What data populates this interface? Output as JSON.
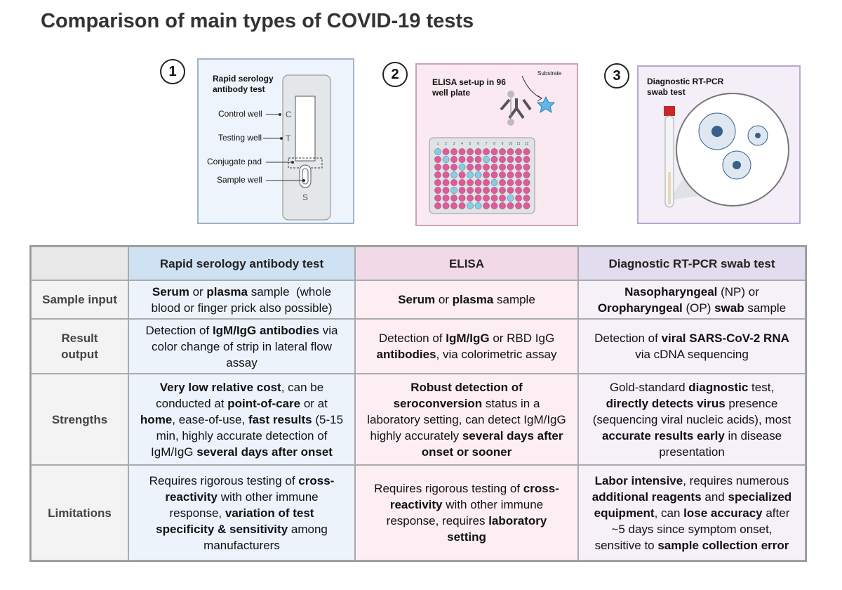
{
  "title": "Comparison of main types of COVID-19 tests",
  "panels": [
    {
      "number": "1",
      "label": "Rapid serology antibody test",
      "parts": [
        "Control well",
        "Testing well",
        "Conjugate pad",
        "Sample well"
      ],
      "letters": [
        "C",
        "T",
        "S"
      ]
    },
    {
      "number": "2",
      "label": "ELISA set-up in 96 well plate",
      "substrate": "Substrate",
      "columns": [
        "1",
        "2",
        "3",
        "4",
        "5",
        "6",
        "7",
        "8",
        "9",
        "10",
        "11",
        "12"
      ]
    },
    {
      "number": "3",
      "label": "Diagnostic RT-PCR swab test"
    }
  ],
  "table": {
    "header": [
      "Rapid serology antibody test",
      "ELISA",
      "Diagnostic RT-PCR swab test"
    ],
    "rows": [
      {
        "label": "Sample input",
        "cells": [
          [
            {
              "text": "Serum",
              "bold": true
            },
            {
              "text": " or "
            },
            {
              "text": "plasma",
              "bold": true
            },
            {
              "text": " sample  (whole blood or finger prick also possible)"
            }
          ],
          [
            {
              "text": "Serum",
              "bold": true
            },
            {
              "text": " or "
            },
            {
              "text": "plasma",
              "bold": true
            },
            {
              "text": " sample"
            }
          ],
          [
            {
              "text": "Nasopharyngeal",
              "bold": true
            },
            {
              "text": " (NP) or "
            },
            {
              "text": "Oropharyngeal",
              "bold": true
            },
            {
              "text": " (OP) "
            },
            {
              "text": "swab",
              "bold": true
            },
            {
              "text": " sample"
            }
          ]
        ]
      },
      {
        "label": "Result output",
        "cells": [
          [
            {
              "text": "Detection of "
            },
            {
              "text": "IgM/IgG antibodies",
              "bold": true
            },
            {
              "text": " via color change of strip in lateral flow assay"
            }
          ],
          [
            {
              "text": "Detection of "
            },
            {
              "text": "IgM/IgG",
              "bold": true
            },
            {
              "text": " or RBD IgG "
            },
            {
              "text": "antibodies",
              "bold": true
            },
            {
              "text": ", via colorimetric assay"
            }
          ],
          [
            {
              "text": "Detection of "
            },
            {
              "text": "viral SARS-CoV-2 RNA",
              "bold": true
            },
            {
              "text": " via cDNA sequencing"
            }
          ]
        ]
      },
      {
        "label": "Strengths",
        "cells": [
          [
            {
              "text": "Very low relative cost",
              "bold": true
            },
            {
              "text": ", can be conducted at "
            },
            {
              "text": "point-of-care",
              "bold": true
            },
            {
              "text": " or at "
            },
            {
              "text": "home",
              "bold": true
            },
            {
              "text": ", ease-of-use, "
            },
            {
              "text": "fast results",
              "bold": true
            },
            {
              "text": " (5-15 min, highly accurate detection of IgM/IgG "
            },
            {
              "text": "several days after onset",
              "bold": true
            }
          ],
          [
            {
              "text": "Robust detection of seroconversion",
              "bold": true
            },
            {
              "text": " status in a laboratory setting, can detect IgM/IgG highly accurately "
            },
            {
              "text": "several days after onset or sooner",
              "bold": true
            }
          ],
          [
            {
              "text": "Gold-standard "
            },
            {
              "text": "diagnostic",
              "bold": true
            },
            {
              "text": " test, "
            },
            {
              "text": "directly detects virus",
              "bold": true
            },
            {
              "text": " presence (sequencing viral nucleic acids), most "
            },
            {
              "text": "accurate results early",
              "bold": true
            },
            {
              "text": " in disease presentation"
            }
          ]
        ]
      },
      {
        "label": "Limitations",
        "cells": [
          [
            {
              "text": "Requires rigorous testing of "
            },
            {
              "text": "cross-reactivity",
              "bold": true
            },
            {
              "text": " with other immune response, "
            },
            {
              "text": "variation of test specificity & sensitivity",
              "bold": true
            },
            {
              "text": " among manufacturers"
            }
          ],
          [
            {
              "text": "Requires rigorous testing of "
            },
            {
              "text": "cross-reactivity",
              "bold": true
            },
            {
              "text": " with other immune response, requires "
            },
            {
              "text": "laboratory setting",
              "bold": true
            }
          ],
          [
            {
              "text": "Labor intensive",
              "bold": true
            },
            {
              "text": ", requires numerous "
            },
            {
              "text": "additional reagents",
              "bold": true
            },
            {
              "text": " and "
            },
            {
              "text": "specialized equipment",
              "bold": true
            },
            {
              "text": ", can "
            },
            {
              "text": "lose accuracy",
              "bold": true
            },
            {
              "text": " after ~5 days since symptom onset, sensitive to "
            },
            {
              "text": "sample collection error",
              "bold": true
            }
          ]
        ]
      }
    ]
  }
}
